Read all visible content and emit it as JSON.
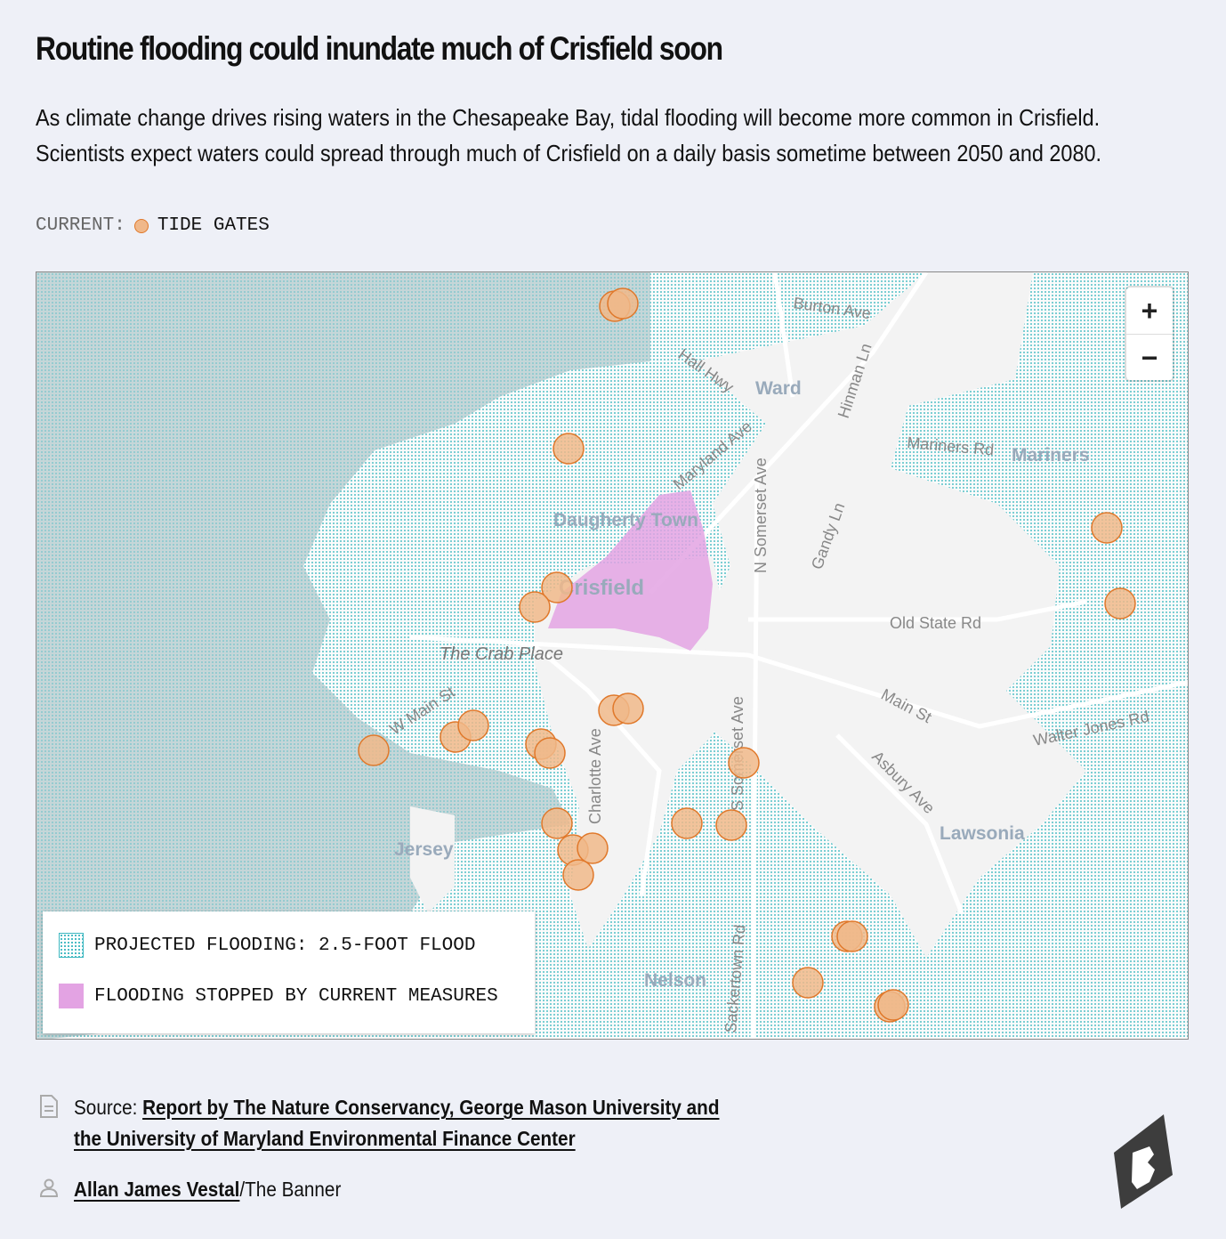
{
  "title": "Routine flooding could inundate much of Crisfield soon",
  "subtitle_lines": [
    "As climate change drives rising waters in the Chesapeake Bay, tidal flooding will become more common in Crisfield.",
    "Scientists expect waters could spread through much of Crisfield on a daily basis sometime between 2050 and 2080."
  ],
  "current_legend": {
    "label": "CURRENT:",
    "item": "TIDE GATES",
    "color": "#f0b88a",
    "stroke": "#e0782a"
  },
  "map": {
    "zoom_in": "+",
    "zoom_out": "−",
    "legend": [
      {
        "label": "PROJECTED FLOODING: 2.5-FOOT FLOOD",
        "color": "#3bb7c0"
      },
      {
        "label": "FLOODING STOPPED BY CURRENT MEASURES",
        "color": "#e3a3e3"
      }
    ],
    "places": [
      "Ward",
      "Mariners",
      "Daugherty Town",
      "Crisfield",
      "Lawsonia",
      "Jersey",
      "Nelson",
      "The Crab Place"
    ],
    "roads": [
      "Burton Ave",
      "Hall Hwy",
      "Hinman Ln",
      "Maryland Ave",
      "Mariners Rd",
      "N Somerset Ave",
      "Gandy Ln",
      "Old State Rd",
      "Main St",
      "W Main St",
      "Walter Jones Rd",
      "Asbury Ave",
      "Charlotte Ave",
      "S Somerset Ave",
      "Sackertown Rd"
    ]
  },
  "footer": {
    "source_label": "Source: ",
    "source_link_1": "Report by The Nature Conservancy, George Mason University and",
    "source_link_2": "the University of Maryland Environmental Finance Center",
    "author": "Allan James Vestal",
    "outlet": "/The Banner"
  }
}
